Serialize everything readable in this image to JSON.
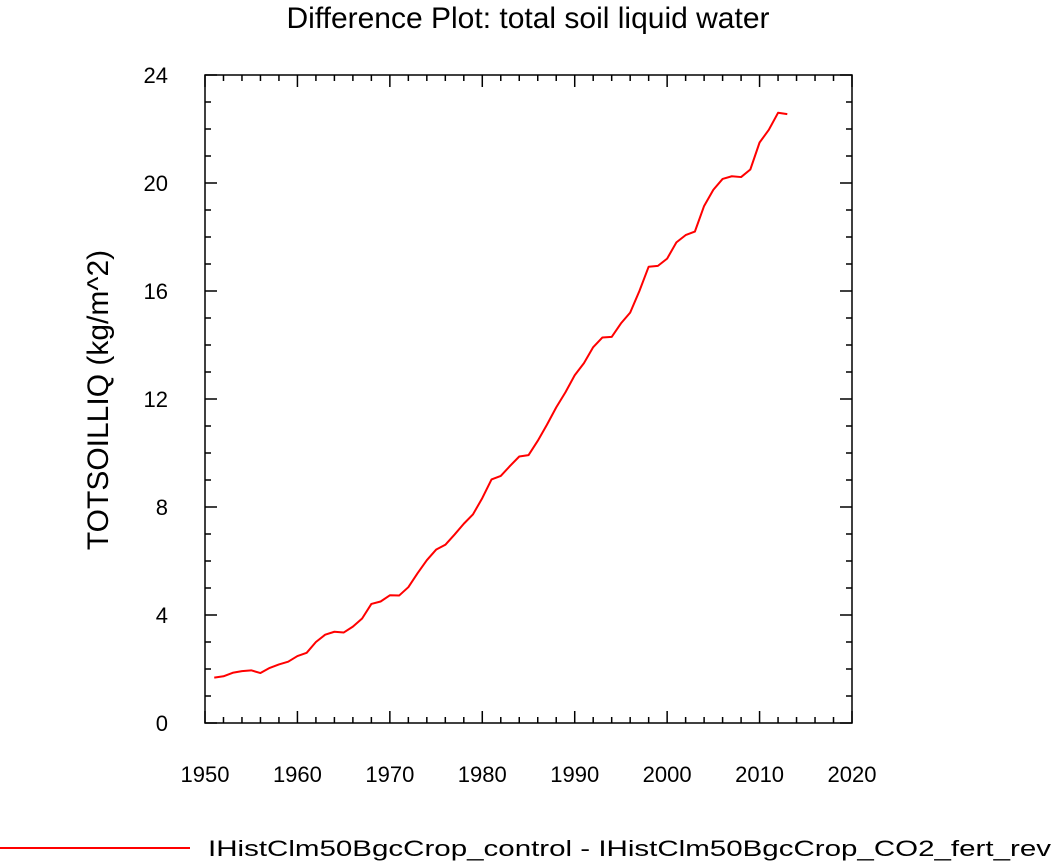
{
  "chart_data": {
    "type": "line",
    "title": "Difference Plot: total soil liquid water",
    "xlabel": "",
    "ylabel": "TOTSOILLIQ  (kg/m^2)",
    "xlim": [
      1950,
      2020
    ],
    "ylim": [
      0,
      24
    ],
    "xticks": [
      1950,
      1960,
      1970,
      1980,
      1990,
      2000,
      2010,
      2020
    ],
    "yticks": [
      0,
      4,
      8,
      12,
      16,
      20,
      24
    ],
    "grid": false,
    "legend_position": "bottom",
    "series": [
      {
        "name": "IHistClm50BgcCrop_control - IHistClm50BgcCrop_CO2_fert_rev",
        "color": "#ff0000",
        "x": [
          1951,
          1952,
          1953,
          1954,
          1955,
          1956,
          1957,
          1958,
          1959,
          1960,
          1961,
          1962,
          1963,
          1964,
          1965,
          1966,
          1967,
          1968,
          1969,
          1970,
          1971,
          1972,
          1973,
          1974,
          1975,
          1976,
          1977,
          1978,
          1979,
          1980,
          1981,
          1982,
          1983,
          1984,
          1985,
          1986,
          1987,
          1988,
          1989,
          1990,
          1991,
          1992,
          1993,
          1994,
          1995,
          1996,
          1997,
          1998,
          1999,
          2000,
          2001,
          2002,
          2003,
          2004,
          2005,
          2006,
          2007,
          2008,
          2009,
          2010,
          2011,
          2012,
          2013
        ],
        "y": [
          1.68,
          1.73,
          1.86,
          1.92,
          1.95,
          1.85,
          2.04,
          2.17,
          2.27,
          2.48,
          2.6,
          3.0,
          3.27,
          3.38,
          3.35,
          3.57,
          3.87,
          4.41,
          4.5,
          4.73,
          4.72,
          5.03,
          5.55,
          6.03,
          6.42,
          6.6,
          6.98,
          7.38,
          7.73,
          8.33,
          9.02,
          9.15,
          9.52,
          9.87,
          9.92,
          10.45,
          11.05,
          11.69,
          12.25,
          12.88,
          13.33,
          13.92,
          14.28,
          14.3,
          14.8,
          15.2,
          16.0,
          16.9,
          16.93,
          17.2,
          17.8,
          18.07,
          18.2,
          19.15,
          19.75,
          20.15,
          20.25,
          20.22,
          20.5,
          21.5,
          21.97,
          22.6,
          22.55
        ]
      }
    ]
  }
}
